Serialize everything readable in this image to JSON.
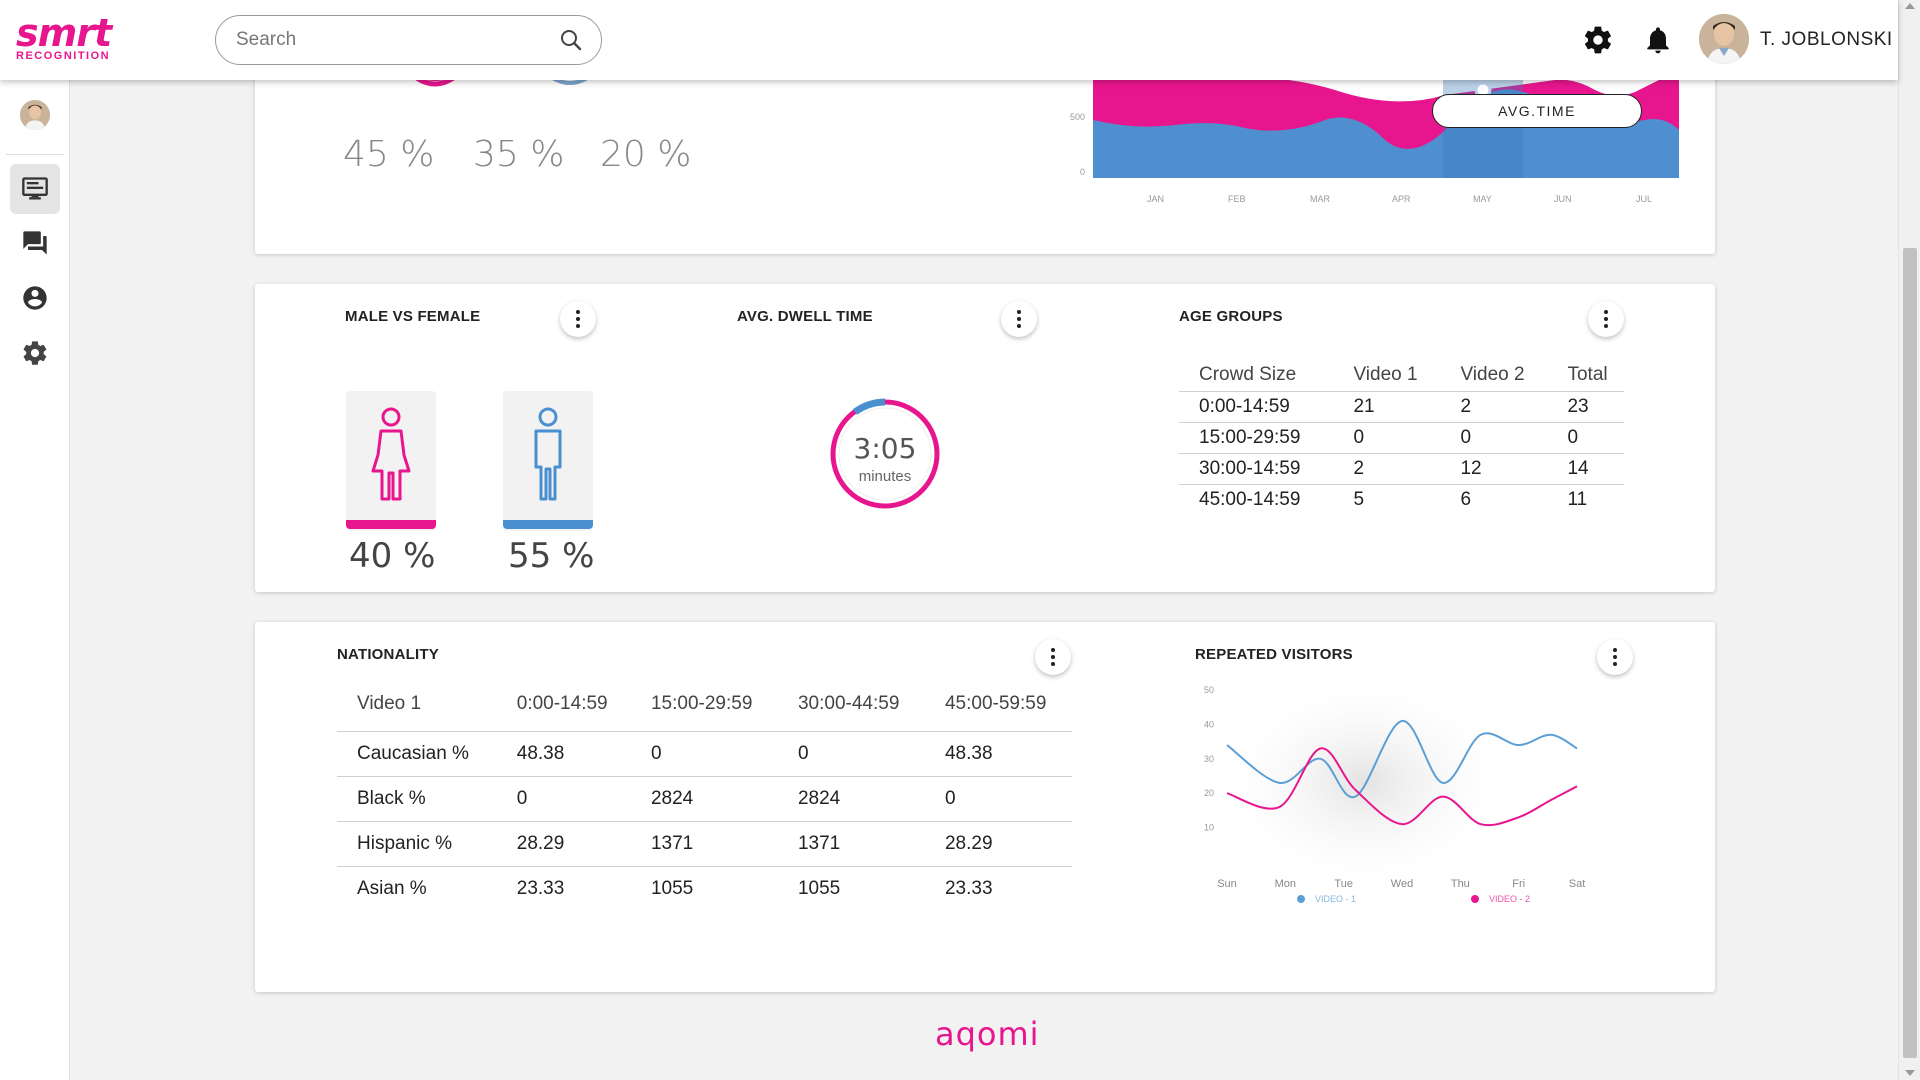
{
  "header": {
    "logo_word": "smrt",
    "logo_sub": "RECOGNITION",
    "search_placeholder": "Search",
    "user_name": "T. JOBLONSKI",
    "icons": [
      "search-icon",
      "gear-icon",
      "bell-icon"
    ]
  },
  "sidebar": {
    "items": [
      {
        "name": "dashboard",
        "icon": "monitor-icon",
        "active": true
      },
      {
        "name": "messages",
        "icon": "chat-icon",
        "active": false
      },
      {
        "name": "account",
        "icon": "account-icon",
        "active": false
      },
      {
        "name": "settings",
        "icon": "gear-icon",
        "active": false
      }
    ]
  },
  "top_card": {
    "percents": [
      "45 %",
      "35 %",
      "20 %"
    ],
    "avg_time_label": "AVG.TIME",
    "area_chart": {
      "type": "area",
      "categories": [
        "JAN",
        "FEB",
        "MAR",
        "APR",
        "MAY",
        "JUN",
        "JUL"
      ],
      "y_ticks": [
        "0",
        "500"
      ],
      "colors": [
        "#e8168e",
        "#4a90d0"
      ]
    }
  },
  "male_female": {
    "title": "MALE VS FEMALE",
    "female_pct": "40 %",
    "male_pct": "55 %",
    "female_color": "#e8168e",
    "male_color": "#4a90d0"
  },
  "dwell": {
    "title": "AVG. DWELL TIME",
    "value": "3:05",
    "unit": "minutes"
  },
  "age_groups": {
    "title": "AGE GROUPS",
    "columns": [
      "Crowd Size",
      "Video 1",
      "Video 2",
      "Total"
    ],
    "rows": [
      [
        "0:00-14:59",
        "21",
        "2",
        "23"
      ],
      [
        "15:00-29:59",
        "0",
        "0",
        "0"
      ],
      [
        "30:00-14:59",
        "2",
        "12",
        "14"
      ],
      [
        "45:00-14:59",
        "5",
        "6",
        "11"
      ]
    ]
  },
  "nationality": {
    "title": "NATIONALITY",
    "columns": [
      "Video 1",
      "0:00-14:59",
      "15:00-29:59",
      "30:00-44:59",
      "45:00-59:59"
    ],
    "rows": [
      [
        "Caucasian %",
        "48.38",
        "0",
        "0",
        "48.38"
      ],
      [
        "Black %",
        "0",
        "2824",
        "2824",
        "0"
      ],
      [
        "Hispanic %",
        "28.29",
        "1371",
        "1371",
        "28.29"
      ],
      [
        "Asian %",
        "23.33",
        "1055",
        "1055",
        "23.33"
      ]
    ]
  },
  "repeated_visitors": {
    "title": "REPEATED VISITORS",
    "chart_data": {
      "type": "line",
      "categories": [
        "Sun",
        "Mon",
        "Tue",
        "Wed",
        "Thu",
        "Fri",
        "Sat"
      ],
      "y_ticks": [
        50,
        40,
        30,
        20,
        10
      ],
      "ylim": [
        0,
        50
      ],
      "series": [
        {
          "name": "VIDEO - 1",
          "color": "#5b9fd6",
          "x": [
            0,
            0.9,
            1.6,
            2.2,
            3.0,
            3.7,
            4.35,
            5.0,
            5.55,
            6.0
          ],
          "y": [
            34,
            23,
            30,
            19,
            41,
            23,
            37,
            34,
            37,
            33
          ]
        },
        {
          "name": "VIDEO - 2",
          "color": "#e8168e",
          "x": [
            0,
            0.9,
            1.6,
            2.2,
            3.0,
            3.7,
            4.35,
            5.0,
            5.55,
            6.0
          ],
          "y": [
            20,
            16,
            33,
            21,
            11,
            19,
            11,
            13,
            18,
            22
          ]
        }
      ],
      "legend_position": "bottom"
    }
  },
  "footer": {
    "logo": "aqomi"
  }
}
